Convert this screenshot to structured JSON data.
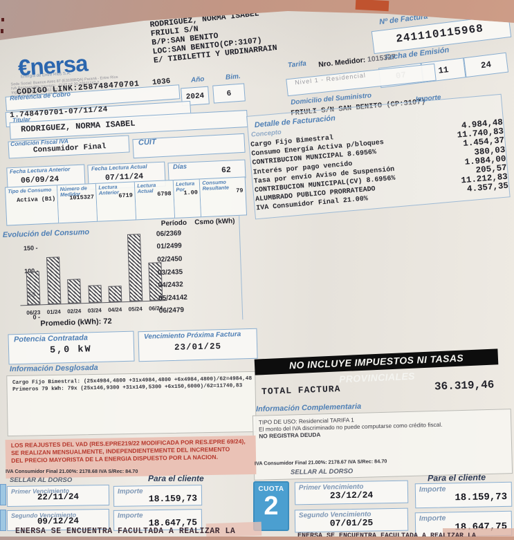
{
  "company": {
    "logo_text": "€nersa",
    "tagline": "Energía de Entre Ríos S.A.",
    "fine_print": [
      "Sede Social: Buenos Aires 87 (E3100BQA) Paraná - Entre Ríos",
      "IVA Responsable Inscripto - CUIT Nº 30-70911747-2",
      "Ing. Brutos Nº 30-70911747-2",
      "Inicio de Actividades: 02-05-05"
    ],
    "codigo_link": "CODIGO LINK:258748470701"
  },
  "customer": {
    "lines": [
      "RODRIGUEZ, NORMA ISABEL",
      "FRIULI S/N",
      "B/P:SAN BENITO",
      "LOC:SAN BENITO(CP:3107)",
      "E/ TIBILETTI Y URDINARRAIN"
    ],
    "route_code": "1036"
  },
  "header": {
    "numero_factura_label": "Nº de Factura",
    "numero_factura": "241110115968",
    "fecha_emision_label": "Fecha de Emisión",
    "fecha_emision": [
      "07",
      "11",
      "24"
    ],
    "ano_label": "Año",
    "ano_value": "2024",
    "bim_label": "Bim.",
    "bim_value": "6",
    "tarifa_label": "Tarifa",
    "tarifa_value": "Nivel 1 - Residencial",
    "medidor_label": "Nro. Medidor:",
    "medidor_value": "1015327",
    "referencia_label": "Referencia de Cobro",
    "referencia_value": "1.748470701-07/11/24",
    "domicilio_label": "Domicilio del Suministro",
    "domicilio_value": "FRIULI S/N SAN BENITO (CP:3107)"
  },
  "titular": {
    "titular_label": "Titular",
    "titular_value": "RODRIGUEZ, NORMA ISABEL",
    "condicion_label": "Condición Fiscal IVA",
    "condicion_value": "Consumidor Final",
    "cuit_label": "CUIT"
  },
  "lecturas": {
    "fecha_anterior_label": "Fecha Lectura Anterior",
    "fecha_anterior": "06/09/24",
    "fecha_actual_label": "Fecha Lectura Actual",
    "fecha_actual": "07/11/24",
    "dias_label": "Días",
    "dias": "62",
    "columns": [
      {
        "label": "Tipo de Consumo",
        "value": "Activa (B1)"
      },
      {
        "label": "Número de Medidor",
        "value": "1015327"
      },
      {
        "label": "Lectura Anterior",
        "value": "6719"
      },
      {
        "label": "Lectura Actual",
        "value": "6798"
      },
      {
        "label": "Lectura Por",
        "value": "1.00"
      },
      {
        "label": "Consumo Resultante",
        "value": "79"
      }
    ]
  },
  "detalle": {
    "title": "Detalle de Facturación",
    "concepto_label": "Concepto",
    "importe_label": "Importe",
    "rows": [
      {
        "concepto": "Cargo Fijo Bimestral",
        "importe": "4.984,48"
      },
      {
        "concepto": "Consumo Energía Activa p/bloques",
        "importe": "11.740,83"
      },
      {
        "concepto": "CONTRIBUCION MUNICIPAL 8.6956%",
        "importe": "1.454,37"
      },
      {
        "concepto": "Interés por pago vencido",
        "importe": "380,03"
      },
      {
        "concepto": "Tasa por envío Aviso de Suspensión",
        "importe": "1.984,00"
      },
      {
        "concepto": "CONTRIBUCION MUNICIPAL(CV) 8.6956%",
        "importe": "205,57"
      },
      {
        "concepto": "ALUMBRADO PUBLICO PRORRATEADO",
        "importe": "11.212,83"
      },
      {
        "concepto": "IVA Consumidor Final 21.00%",
        "importe": "4.357,35"
      }
    ]
  },
  "chart_data": {
    "type": "bar",
    "title": "Evolución del Consumo",
    "categories": [
      "06/23",
      "01/24",
      "02/24",
      "03/24",
      "04/24",
      "05/24",
      "06/24"
    ],
    "values": [
      69,
      99,
      50,
      35,
      32,
      142,
      79
    ],
    "ylabel": "kWh",
    "ylim": [
      0,
      150
    ],
    "yticks": [
      0,
      50,
      100,
      150
    ],
    "table_headers": [
      "Período",
      "Csmo (kWh)"
    ],
    "average": 72,
    "average_label": "Promedio (kWh): 72"
  },
  "potencia": {
    "label": "Potencia Contratada",
    "value": "5,0 kW"
  },
  "vencimiento_proxima": {
    "label": "Vencimiento Próxima Factura",
    "value": "23/01/25"
  },
  "desglose": {
    "title": "Información Desglosada",
    "lines": [
      "Cargo Fijo Bimestral: (25x4984,4800 +31x4984,4800 +6x4984,4800)/62=4984,48",
      "Primeros 79 kWh: 79x (25x146,9300 +31x149,5300 +6x150,6000)/62=11740,83"
    ]
  },
  "banner_text": "NO INCLUYE IMPUESTOS NI TASAS PROVINCIALES",
  "total": {
    "label": "TOTAL FACTURA",
    "value": "36.319,46"
  },
  "complementaria": {
    "title": "Información Complementaria",
    "lines": [
      "TIPO DE USO: Residencial TARIFA 1",
      "El monto del IVA discriminado no puede computarse como crédito fiscal.",
      "NO REGISTRA DEUDA"
    ]
  },
  "vad_notice": {
    "lines": [
      "LOS REAJUSTES DEL VAD (RES.EPRE219/22 MODIFICADA POR RES.EPRE 69/24),",
      "SE REALIZAN MENSUALMENTE, INDEPENDIENTEMENTE DEL INCREMENTO",
      "DEL PRECIO MAYORISTA DE LA ENERGIA DISPUESTO POR LA NACION."
    ]
  },
  "stub_left": {
    "iva_line": "IVA Consumidor Final 21.00%: 2178.68 IVA S/Rec: 84.70",
    "sellar": "SELLAR AL DORSO",
    "cliente": "Para el cliente",
    "venc1_label": "Primer Vencimiento",
    "venc1": "22/11/24",
    "imp1_label": "Importe",
    "imp1": "18.159,73",
    "venc2_label": "Segundo Vencimiento",
    "venc2": "09/12/24",
    "imp2_label": "Importe",
    "imp2": "18.647,75"
  },
  "stub_right": {
    "iva_line": "IVA Consumidor Final 21.00%: 2178.67 IVA S/Rec: 84.70",
    "sellar": "SELLAR AL DORSO",
    "cliente": "Para el cliente",
    "cuota_label": "CUOTA",
    "cuota_num": "2",
    "venc1_label": "Primer Vencimiento",
    "venc1": "23/12/24",
    "imp1_label": "Importe",
    "imp1": "18.159,73",
    "venc2_label": "Segundo Vencimiento",
    "venc2": "07/01/25",
    "imp2_label": "Importe",
    "imp2": "18.647,75"
  },
  "footer_line": "ENERSA SE ENCUENTRA FACULTADA A REALIZAR LA",
  "colors": {
    "enersa_blue": "#2b66ae",
    "label_blue": "#4e7fb5",
    "badge_blue": "#4b9fd0",
    "notice_red": "#b5372c",
    "banner_bg": "#0d0d0d",
    "photo_background": "#c39684"
  }
}
